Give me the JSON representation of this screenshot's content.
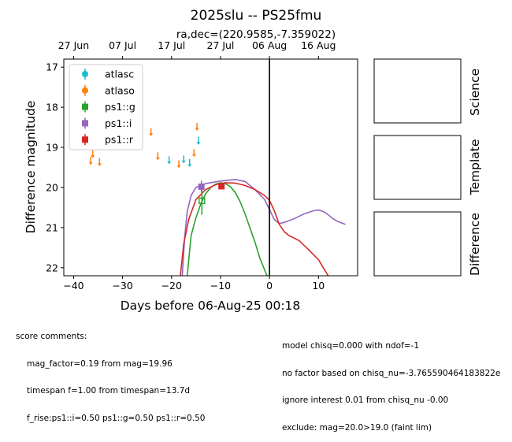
{
  "figure": {
    "title": "2025slu -- PS25fmu",
    "subtitle": "ra,dec=(220.9585,-7.359022)"
  },
  "chart_data": {
    "type": "scatter",
    "xlabel": "Days before 06-Aug-25 00:18",
    "ylabel": "Difference magnitude",
    "xlim": [
      -42,
      18
    ],
    "ylim": [
      22.2,
      16.8
    ],
    "y_inverted": true,
    "x_ticks": [
      -40,
      -30,
      -20,
      -10,
      0,
      10
    ],
    "y_ticks": [
      17,
      18,
      19,
      20,
      21,
      22
    ],
    "top_axis_ticks": [
      {
        "x": -40,
        "label": "27 Jun"
      },
      {
        "x": -30,
        "label": "07 Jul"
      },
      {
        "x": -20,
        "label": "17 Jul"
      },
      {
        "x": -10,
        "label": "27 Jul"
      },
      {
        "x": 0,
        "label": "06 Aug"
      },
      {
        "x": 10,
        "label": "16 Aug"
      }
    ],
    "vline_x": 0,
    "legend_position": "top-left",
    "series": [
      {
        "name": "atlasc",
        "color": "#17becf",
        "marker": "circle",
        "upper_limits": [
          {
            "x": -20.5,
            "y": 19.3
          },
          {
            "x": -17.5,
            "y": 19.28
          },
          {
            "x": -16.3,
            "y": 19.37
          },
          {
            "x": -14.5,
            "y": 18.82
          }
        ]
      },
      {
        "name": "atlaso",
        "color": "#ff7f0e",
        "marker": "circle",
        "upper_limits": [
          {
            "x": -36.5,
            "y": 19.32
          },
          {
            "x": -36.1,
            "y": 19.15
          },
          {
            "x": -34.7,
            "y": 19.35
          },
          {
            "x": -24.2,
            "y": 18.6
          },
          {
            "x": -22.8,
            "y": 19.2
          },
          {
            "x": -18.5,
            "y": 19.4
          },
          {
            "x": -15.4,
            "y": 19.12
          },
          {
            "x": -14.8,
            "y": 18.47
          }
        ]
      },
      {
        "name": "ps1::g",
        "color": "#2ca02c",
        "marker": "square-open",
        "points": [
          {
            "x": -13.8,
            "y": 20.33,
            "err": 0.35
          }
        ]
      },
      {
        "name": "ps1::i",
        "color": "#9467bd",
        "marker": "square",
        "points": [
          {
            "x": -13.9,
            "y": 19.98,
            "err": 0.15
          }
        ]
      },
      {
        "name": "ps1::r",
        "color": "#d62728",
        "marker": "square",
        "points": [
          {
            "x": -9.8,
            "y": 19.97,
            "err": 0.08
          }
        ]
      }
    ],
    "model_curves": [
      {
        "name": "ps1::g",
        "color": "#2ca02c",
        "points": [
          [
            -16.8,
            22.2
          ],
          [
            -16,
            21.2
          ],
          [
            -15,
            20.75
          ],
          [
            -14,
            20.4
          ],
          [
            -13,
            20.15
          ],
          [
            -12,
            20.0
          ],
          [
            -11,
            19.92
          ],
          [
            -10,
            19.88
          ],
          [
            -9,
            19.9
          ],
          [
            -8,
            19.98
          ],
          [
            -7,
            20.12
          ],
          [
            -6,
            20.35
          ],
          [
            -5,
            20.65
          ],
          [
            -4,
            21.0
          ],
          [
            -3,
            21.35
          ],
          [
            -2,
            21.75
          ],
          [
            -1,
            22.05
          ],
          [
            -0.5,
            22.2
          ]
        ]
      },
      {
        "name": "ps1::i",
        "color": "#9467bd",
        "points": [
          [
            -17.8,
            22.2
          ],
          [
            -17.3,
            21.2
          ],
          [
            -16.8,
            20.6
          ],
          [
            -16,
            20.2
          ],
          [
            -15,
            20.0
          ],
          [
            -13,
            19.9
          ],
          [
            -10,
            19.84
          ],
          [
            -7,
            19.8
          ],
          [
            -5,
            19.85
          ],
          [
            -3,
            20.05
          ],
          [
            -1,
            20.3
          ],
          [
            0,
            20.55
          ],
          [
            1,
            20.8
          ],
          [
            2,
            20.9
          ],
          [
            3,
            20.87
          ],
          [
            5,
            20.78
          ],
          [
            7,
            20.66
          ],
          [
            9,
            20.58
          ],
          [
            10,
            20.56
          ],
          [
            11,
            20.6
          ],
          [
            12,
            20.68
          ],
          [
            13,
            20.78
          ],
          [
            14,
            20.85
          ],
          [
            15.5,
            20.92
          ]
        ]
      },
      {
        "name": "ps1::r",
        "color": "#d62728",
        "points": [
          [
            -18.2,
            22.2
          ],
          [
            -17.5,
            21.4
          ],
          [
            -16.5,
            20.8
          ],
          [
            -15,
            20.3
          ],
          [
            -13,
            20.05
          ],
          [
            -11,
            19.93
          ],
          [
            -9,
            19.88
          ],
          [
            -7,
            19.89
          ],
          [
            -5,
            19.95
          ],
          [
            -3,
            20.05
          ],
          [
            -1,
            20.2
          ],
          [
            0,
            20.32
          ],
          [
            1,
            20.58
          ],
          [
            2,
            20.92
          ],
          [
            3,
            21.1
          ],
          [
            4,
            21.2
          ],
          [
            6,
            21.32
          ],
          [
            8,
            21.55
          ],
          [
            10,
            21.8
          ],
          [
            11,
            22.0
          ],
          [
            12,
            22.2
          ]
        ]
      }
    ]
  },
  "thumbnails": [
    {
      "label": "Science"
    },
    {
      "label": "Template"
    },
    {
      "label": "Difference"
    }
  ],
  "comments": {
    "header": "score comments:",
    "left": [
      "mag_factor=0.19 from mag=19.96",
      "timespan f=1.00 from timespan=13.7d",
      "f_rise:ps1::i=0.50 ps1::g=0.50 ps1::r=0.50"
    ],
    "right": [
      "model chisq=0.000 with ndof=-1",
      "no factor based on chisq_nu=-3.765590464183822e",
      "ignore interest 0.01 from chisq_nu -0.00",
      "exclude: mag=20.0>19.0 (faint lim)"
    ]
  }
}
